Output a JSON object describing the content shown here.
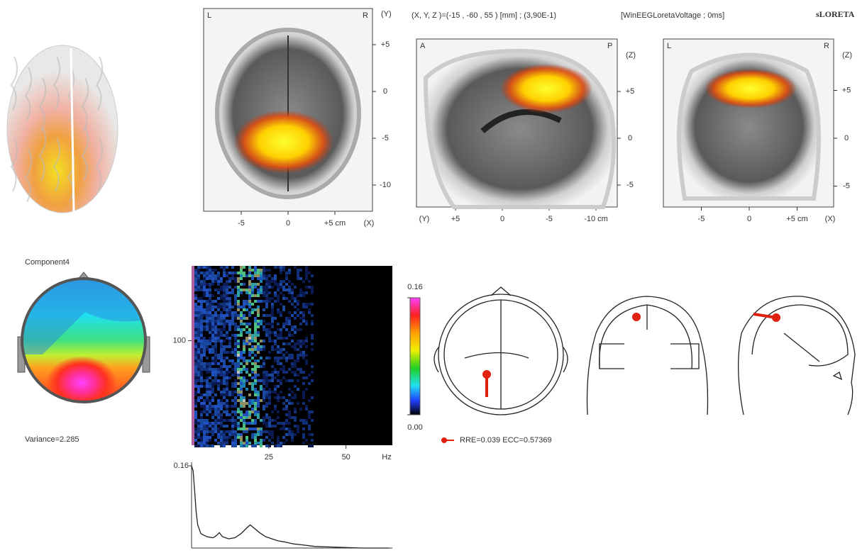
{
  "header": {
    "coordinates": "(X, Y, Z )=(-15 , -60 , 55 ) [mm] ; (3,90E-1)",
    "method": "[WinEEGLoretaVoltage ; 0ms]",
    "software": "sLORETA"
  },
  "axial": {
    "corner_left": "L",
    "corner_right": "R",
    "y_axis_label": "(Y)",
    "x_axis_label": "(X)",
    "yticks": [
      {
        "value": 5,
        "label": "+5"
      },
      0,
      -5,
      -10
    ],
    "xticks": [
      -5,
      0,
      {
        "value": 5,
        "label": "+5 cm"
      }
    ]
  },
  "sagittal": {
    "corner_left": "A",
    "corner_right": "P",
    "z_axis_label": "(Z)",
    "y_axis_label": "(Y)",
    "zticks": [
      {
        "value": 5,
        "label": "+5"
      },
      0,
      -5
    ],
    "yticks": [
      {
        "value": 5,
        "label": "+5"
      },
      0,
      -5,
      {
        "value": -10,
        "label": "-10 cm"
      }
    ]
  },
  "coronal": {
    "corner_left": "L",
    "corner_right": "R",
    "z_axis_label": "(Z)",
    "x_axis_label": "(X)",
    "zticks": [
      {
        "value": 5,
        "label": "+5"
      },
      0,
      -5
    ],
    "xticks": [
      -5,
      0,
      {
        "value": 5,
        "label": "+5 cm"
      }
    ]
  },
  "component": {
    "title": "Component4",
    "variance": "Variance=2.285"
  },
  "chart_data": [
    {
      "type": "heatmap",
      "xlim": [
        0,
        65
      ],
      "xticks": [
        25,
        50
      ],
      "x_unit": "Hz",
      "ylim": [
        0,
        240
      ],
      "yticks": [
        100
      ],
      "colorbar": {
        "ticks": [
          0.16,
          {
            "value": 0,
            "label": "0.00"
          }
        ]
      }
    },
    {
      "type": "line",
      "xlim": [
        0,
        65
      ],
      "ylim": [
        0,
        0.16
      ],
      "yticks": [
        0.16
      ],
      "color": "#222",
      "x": [
        0,
        0.5,
        1,
        1.5,
        2,
        3,
        4,
        5,
        6,
        7,
        8,
        9,
        10,
        11,
        12,
        14,
        16,
        18,
        19,
        20,
        22,
        24,
        26,
        28,
        30,
        33,
        36,
        40,
        45,
        50,
        55,
        60,
        64
      ],
      "values": [
        0.16,
        0.15,
        0.11,
        0.07,
        0.045,
        0.028,
        0.025,
        0.022,
        0.021,
        0.02,
        0.024,
        0.03,
        0.022,
        0.02,
        0.018,
        0.02,
        0.028,
        0.04,
        0.045,
        0.04,
        0.03,
        0.022,
        0.018,
        0.014,
        0.012,
        0.008,
        0.006,
        0.003,
        0.002,
        0.001,
        0,
        0,
        0
      ]
    }
  ],
  "dipole": {
    "legend": "RRE=0.039 ECC=0.57369"
  }
}
